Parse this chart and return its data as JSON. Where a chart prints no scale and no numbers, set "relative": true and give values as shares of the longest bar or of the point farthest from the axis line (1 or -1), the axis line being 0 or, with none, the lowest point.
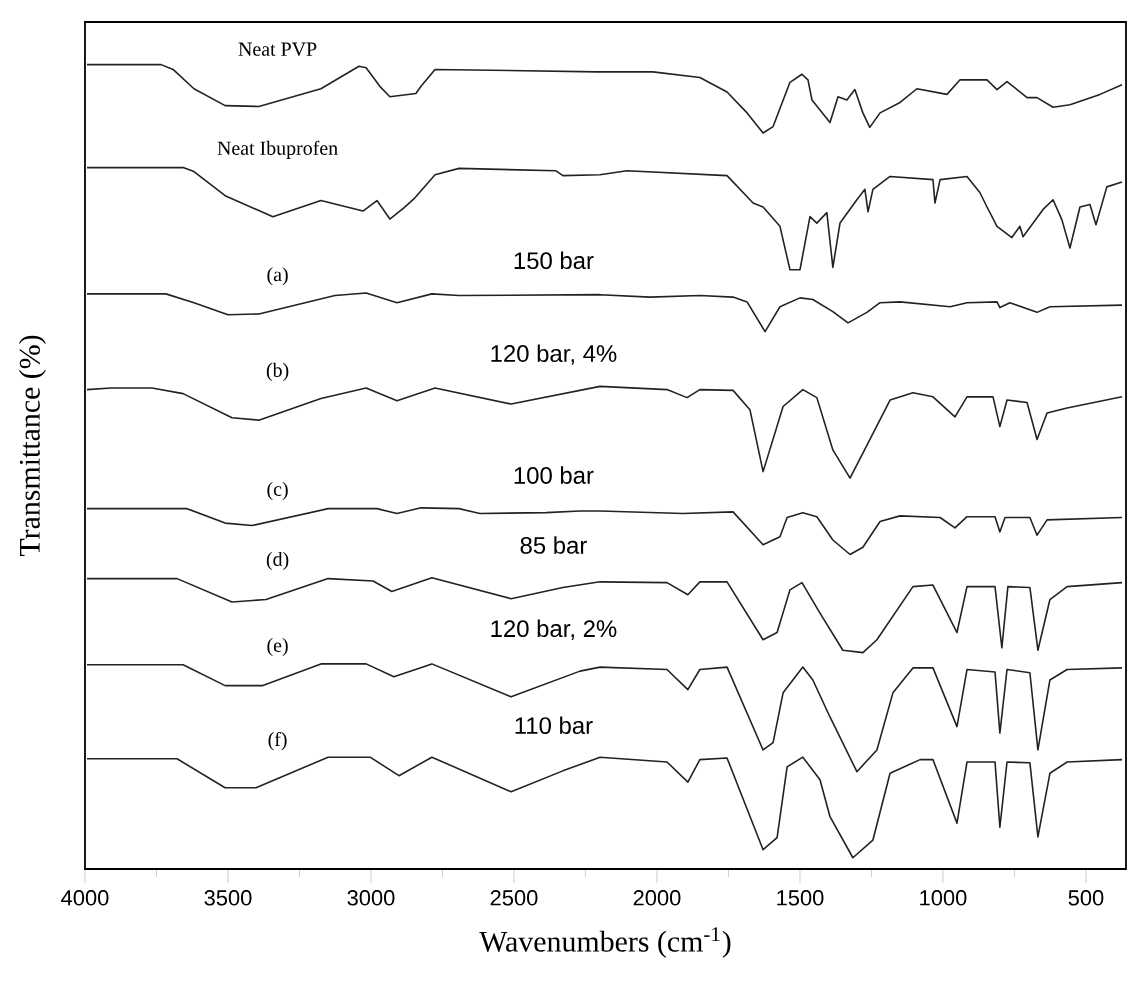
{
  "chart_data": {
    "type": "line",
    "relative": true,
    "xlabel": "Wavenumbers (cm$^{-1}$)",
    "ylabel": "Transmittance (%)",
    "xlim": [
      4000,
      360
    ],
    "xticks": [
      4000,
      3500,
      3000,
      2500,
      2000,
      1500,
      1000,
      500
    ],
    "annotations": [
      "150 bar",
      "120 bar, 4%",
      "100 bar",
      "85 bar",
      "120 bar, 2%",
      "110 bar"
    ],
    "series": [
      {
        "name": "Neat PVP",
        "color": "#222222",
        "x": [
          3993,
          3734,
          3692,
          3619,
          3510,
          3392,
          3175,
          3042,
          3017,
          2969,
          2934,
          2843,
          2825,
          2776,
          2210,
          2014,
          1850,
          1755,
          1685,
          1629,
          1594,
          1535,
          1493,
          1472,
          1458,
          1395,
          1367,
          1336,
          1308,
          1280,
          1256,
          1220,
          1150,
          1091,
          986,
          941,
          846,
          811,
          776,
          706,
          671,
          615,
          556,
          451,
          374
        ],
        "values": [
          1.0,
          1.0,
          0.994,
          0.97,
          0.949,
          0.948,
          0.97,
          0.998,
          0.996,
          0.973,
          0.96,
          0.964,
          0.973,
          0.994,
          0.991,
          0.991,
          0.984,
          0.966,
          0.94,
          0.915,
          0.923,
          0.978,
          0.988,
          0.981,
          0.956,
          0.928,
          0.96,
          0.956,
          0.969,
          0.94,
          0.922,
          0.94,
          0.953,
          0.97,
          0.963,
          0.981,
          0.981,
          0.969,
          0.979,
          0.959,
          0.959,
          0.947,
          0.95,
          0.963,
          0.975
        ]
      },
      {
        "name": "Neat Ibuprofen",
        "color": "#222222",
        "x": [
          3993,
          3657,
          3619,
          3510,
          3343,
          3175,
          3028,
          2979,
          2934,
          2885,
          2850,
          2776,
          2692,
          2353,
          2329,
          2199,
          2105,
          1755,
          1664,
          1629,
          1570,
          1535,
          1500,
          1465,
          1441,
          1406,
          1385,
          1360,
          1301,
          1273,
          1262,
          1245,
          1185,
          1035,
          1028,
          1010,
          916,
          871,
          846,
          811,
          759,
          731,
          720,
          650,
          615,
          584,
          556,
          521,
          486,
          465,
          427,
          374
        ],
        "values": [
          0.872,
          0.872,
          0.867,
          0.837,
          0.811,
          0.831,
          0.818,
          0.831,
          0.808,
          0.822,
          0.833,
          0.863,
          0.871,
          0.868,
          0.862,
          0.863,
          0.868,
          0.862,
          0.828,
          0.823,
          0.799,
          0.745,
          0.745,
          0.811,
          0.803,
          0.816,
          0.748,
          0.803,
          0.832,
          0.845,
          0.817,
          0.845,
          0.861,
          0.857,
          0.828,
          0.857,
          0.861,
          0.841,
          0.823,
          0.799,
          0.785,
          0.799,
          0.786,
          0.82,
          0.832,
          0.807,
          0.772,
          0.823,
          0.826,
          0.801,
          0.848,
          0.854
        ]
      },
      {
        "name": "(a)",
        "color": "#222222",
        "x": [
          3993,
          3899,
          3717,
          3619,
          3500,
          3392,
          3126,
          3017,
          2909,
          2787,
          2692,
          2199,
          2024,
          1850,
          1734,
          1685,
          1622,
          1570,
          1500,
          1455,
          1385,
          1332,
          1266,
          1220,
          1150,
          975,
          916,
          811,
          801,
          766,
          671,
          626,
          374
        ],
        "values": [
          0.715,
          0.715,
          0.715,
          0.704,
          0.689,
          0.69,
          0.713,
          0.716,
          0.704,
          0.715,
          0.713,
          0.714,
          0.711,
          0.713,
          0.711,
          0.705,
          0.668,
          0.699,
          0.71,
          0.708,
          0.693,
          0.679,
          0.692,
          0.704,
          0.705,
          0.699,
          0.704,
          0.705,
          0.698,
          0.704,
          0.692,
          0.699,
          0.701
        ]
      },
      {
        "name": "(b)",
        "color": "#222222",
        "x": [
          3993,
          3909,
          3766,
          3657,
          3486,
          3392,
          3175,
          3017,
          2909,
          2776,
          2510,
          2199,
          1965,
          1895,
          1850,
          1734,
          1675,
          1629,
          1559,
          1490,
          1441,
          1385,
          1325,
          1280,
          1185,
          1105,
          1035,
          958,
          916,
          825,
          801,
          776,
          706,
          671,
          636,
          566,
          374
        ],
        "values": [
          0.596,
          0.598,
          0.598,
          0.591,
          0.561,
          0.558,
          0.585,
          0.598,
          0.582,
          0.598,
          0.578,
          0.6,
          0.596,
          0.586,
          0.596,
          0.595,
          0.571,
          0.494,
          0.575,
          0.596,
          0.586,
          0.521,
          0.486,
          0.517,
          0.583,
          0.592,
          0.587,
          0.562,
          0.587,
          0.587,
          0.55,
          0.583,
          0.58,
          0.534,
          0.567,
          0.573,
          0.587
        ]
      },
      {
        "name": "(c)",
        "color": "#222222",
        "x": [
          3993,
          3643,
          3510,
          3416,
          3150,
          2979,
          2909,
          2825,
          2692,
          2619,
          2388,
          2269,
          2199,
          1909,
          1734,
          1629,
          1570,
          1545,
          1490,
          1441,
          1385,
          1325,
          1280,
          1220,
          1150,
          1010,
          958,
          916,
          818,
          801,
          783,
          696,
          671,
          636,
          374
        ],
        "values": [
          0.448,
          0.448,
          0.43,
          0.427,
          0.448,
          0.448,
          0.442,
          0.449,
          0.448,
          0.442,
          0.443,
          0.445,
          0.445,
          0.442,
          0.444,
          0.403,
          0.413,
          0.437,
          0.443,
          0.438,
          0.409,
          0.391,
          0.4,
          0.432,
          0.439,
          0.437,
          0.424,
          0.438,
          0.438,
          0.419,
          0.437,
          0.437,
          0.415,
          0.434,
          0.437
        ]
      },
      {
        "name": "(d)",
        "color": "#222222",
        "x": [
          3993,
          3678,
          3486,
          3367,
          3150,
          2993,
          2927,
          2787,
          2510,
          2329,
          2199,
          1965,
          1892,
          1850,
          1755,
          1629,
          1580,
          1535,
          1493,
          1430,
          1350,
          1280,
          1231,
          1105,
          1035,
          951,
          916,
          818,
          794,
          773,
          696,
          668,
          626,
          566,
          374
        ],
        "values": [
          0.361,
          0.361,
          0.332,
          0.335,
          0.361,
          0.358,
          0.345,
          0.362,
          0.336,
          0.35,
          0.357,
          0.356,
          0.341,
          0.357,
          0.357,
          0.285,
          0.294,
          0.347,
          0.356,
          0.318,
          0.272,
          0.269,
          0.285,
          0.351,
          0.353,
          0.294,
          0.351,
          0.351,
          0.275,
          0.351,
          0.35,
          0.272,
          0.335,
          0.351,
          0.356
        ]
      },
      {
        "name": "(e)",
        "color": "#222222",
        "x": [
          3993,
          3657,
          3510,
          3378,
          3175,
          3017,
          2920,
          2787,
          2510,
          2269,
          2199,
          1965,
          1892,
          1850,
          1755,
          1629,
          1594,
          1559,
          1490,
          1455,
          1395,
          1301,
          1231,
          1175,
          1105,
          1035,
          951,
          916,
          818,
          801,
          776,
          696,
          668,
          626,
          566,
          374
        ],
        "values": [
          0.254,
          0.254,
          0.228,
          0.228,
          0.255,
          0.255,
          0.239,
          0.255,
          0.214,
          0.246,
          0.251,
          0.248,
          0.223,
          0.248,
          0.251,
          0.148,
          0.157,
          0.219,
          0.251,
          0.235,
          0.189,
          0.121,
          0.148,
          0.219,
          0.25,
          0.25,
          0.177,
          0.248,
          0.245,
          0.169,
          0.248,
          0.244,
          0.148,
          0.235,
          0.248,
          0.25
        ]
      },
      {
        "name": "(f)",
        "color": "#222222",
        "x": [
          3993,
          3678,
          3510,
          3402,
          3150,
          3003,
          2902,
          2787,
          2510,
          2329,
          2199,
          1965,
          1892,
          1850,
          1755,
          1629,
          1580,
          1545,
          1490,
          1430,
          1395,
          1315,
          1245,
          1185,
          1080,
          1035,
          951,
          916,
          818,
          801,
          776,
          696,
          668,
          626,
          566,
          374
        ],
        "values": [
          0.137,
          0.137,
          0.101,
          0.101,
          0.139,
          0.139,
          0.116,
          0.139,
          0.096,
          0.122,
          0.139,
          0.133,
          0.108,
          0.136,
          0.138,
          0.024,
          0.039,
          0.127,
          0.139,
          0.111,
          0.065,
          0.014,
          0.036,
          0.119,
          0.136,
          0.136,
          0.057,
          0.133,
          0.133,
          0.052,
          0.133,
          0.132,
          0.04,
          0.119,
          0.133,
          0.136
        ]
      }
    ]
  }
}
